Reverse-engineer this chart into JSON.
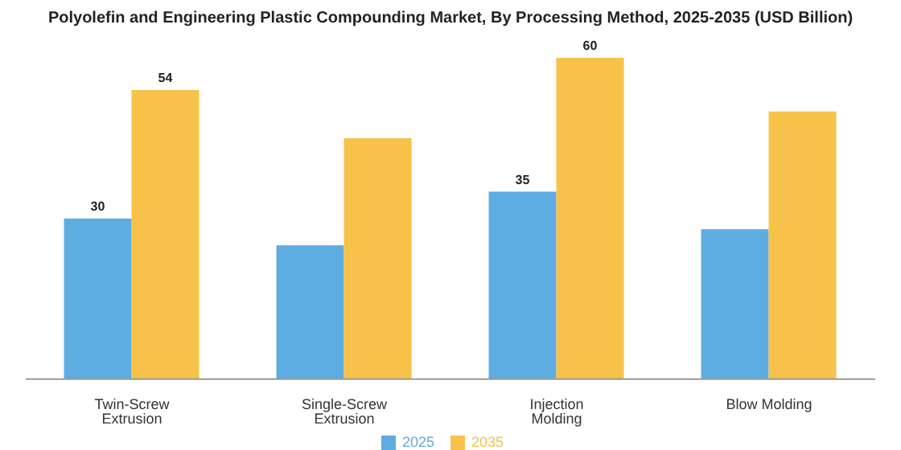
{
  "chart_data": {
    "type": "bar",
    "title": "Polyolefin and Engineering Plastic Compounding Market, By Processing Method, 2025-2035 (USD Billion)",
    "categories": [
      "Twin-Screw Extrusion",
      "Single-Screw Extrusion",
      "Injection Molding",
      "Blow Molding"
    ],
    "series": [
      {
        "name": "2025",
        "color": "#5dade2",
        "values": [
          30,
          25,
          35,
          28
        ],
        "value_labels": [
          "30",
          null,
          "35",
          null
        ]
      },
      {
        "name": "2035",
        "color": "#f7c24a",
        "values": [
          54,
          45,
          60,
          50
        ],
        "value_labels": [
          "54",
          null,
          "60",
          null
        ]
      }
    ],
    "legend": "bottom"
  }
}
